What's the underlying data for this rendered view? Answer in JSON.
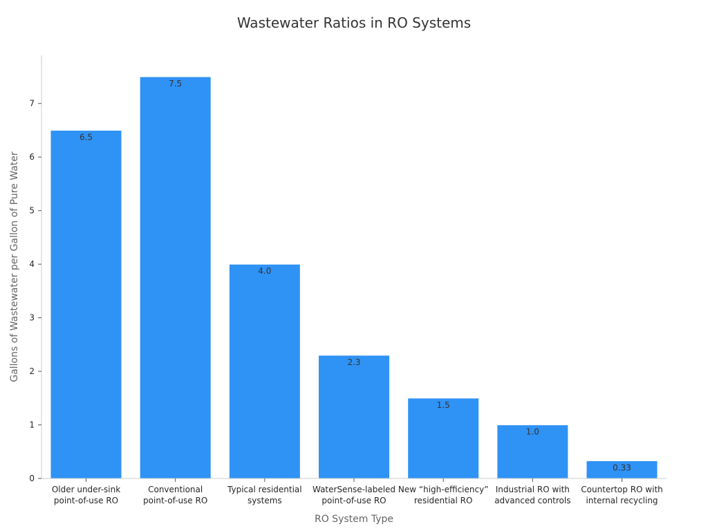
{
  "chart_data": {
    "type": "bar",
    "title": "Wastewater Ratios in RO Systems",
    "xlabel": "RO System Type",
    "ylabel": "Gallons of Wastewater per Gallon of Pure Water",
    "categories": [
      [
        "Older under-sink",
        "point-of-use RO"
      ],
      [
        "Conventional",
        "point-of-use RO"
      ],
      [
        "Typical residential",
        "systems"
      ],
      [
        "WaterSense-labeled",
        "point-of-use RO"
      ],
      [
        "New “high-efficiency”",
        "residential RO"
      ],
      [
        "Industrial RO with",
        "advanced controls"
      ],
      [
        "Countertop RO with",
        "internal recycling"
      ]
    ],
    "values": [
      6.5,
      7.5,
      4.0,
      2.3,
      1.5,
      1.0,
      0.33
    ],
    "value_labels": [
      "6.5",
      "7.5",
      "4.0",
      "2.3",
      "1.5",
      "1.0",
      "0.33"
    ],
    "ylim": [
      0,
      7.9
    ],
    "yticks": [
      0,
      1,
      2,
      3,
      4,
      5,
      6,
      7
    ],
    "grid": false,
    "bar_color": "#2f92f5",
    "bar_edge_color": "#ffffff"
  }
}
